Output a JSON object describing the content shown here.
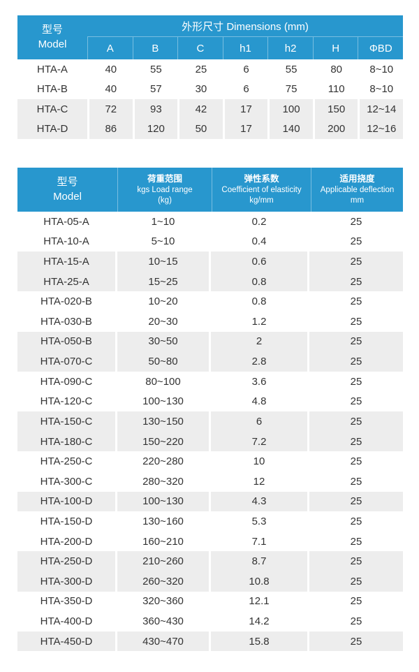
{
  "colors": {
    "header_blue": "#2897ce",
    "stripe_gray": "#ededed",
    "text_dark": "#333333"
  },
  "dimensions_table": {
    "model_header": {
      "zh": "型号",
      "en": "Model"
    },
    "dimensions_title": "外形尺寸 Dimensions (mm)",
    "columns": [
      "A",
      "B",
      "C",
      "h1",
      "h2",
      "H",
      "ΦBD"
    ],
    "rows": [
      {
        "model": "HTA-A",
        "values": [
          "40",
          "55",
          "25",
          "6",
          "55",
          "80",
          "8~10"
        ],
        "shaded": false
      },
      {
        "model": "HTA-B",
        "values": [
          "40",
          "57",
          "30",
          "6",
          "75",
          "110",
          "8~10"
        ],
        "shaded": false
      },
      {
        "model": "HTA-C",
        "values": [
          "72",
          "93",
          "42",
          "17",
          "100",
          "150",
          "12~14"
        ],
        "shaded": true
      },
      {
        "model": "HTA-D",
        "values": [
          "86",
          "120",
          "50",
          "17",
          "140",
          "200",
          "12~16"
        ],
        "shaded": true
      }
    ]
  },
  "spec_table": {
    "headers": [
      {
        "lines": [
          "型号",
          "Model"
        ]
      },
      {
        "lines": [
          "荷重范围",
          "kgs Load range",
          "(kg)"
        ]
      },
      {
        "lines": [
          "弹性系数",
          "Coefficient of elasticity",
          "kg/mm"
        ]
      },
      {
        "lines": [
          "适用挠度",
          "Applicable deflection",
          "mm"
        ]
      }
    ],
    "rows": [
      {
        "model": "HTA-05-A",
        "load_range": "1~10",
        "coefficient": "0.2",
        "deflection": "25",
        "shaded": false
      },
      {
        "model": "HTA-10-A",
        "load_range": "5~10",
        "coefficient": "0.4",
        "deflection": "25",
        "shaded": false
      },
      {
        "model": "HTA-15-A",
        "load_range": "10~15",
        "coefficient": "0.6",
        "deflection": "25",
        "shaded": true
      },
      {
        "model": "HTA-25-A",
        "load_range": "15~25",
        "coefficient": "0.8",
        "deflection": "25",
        "shaded": true
      },
      {
        "model": "HTA-020-B",
        "load_range": "10~20",
        "coefficient": "0.8",
        "deflection": "25",
        "shaded": false
      },
      {
        "model": "HTA-030-B",
        "load_range": "20~30",
        "coefficient": "1.2",
        "deflection": "25",
        "shaded": false
      },
      {
        "model": "HTA-050-B",
        "load_range": "30~50",
        "coefficient": "2",
        "deflection": "25",
        "shaded": true
      },
      {
        "model": "HTA-070-C",
        "load_range": "50~80",
        "coefficient": "2.8",
        "deflection": "25",
        "shaded": true
      },
      {
        "model": "HTA-090-C",
        "load_range": "80~100",
        "coefficient": "3.6",
        "deflection": "25",
        "shaded": false
      },
      {
        "model": "HTA-120-C",
        "load_range": "100~130",
        "coefficient": "4.8",
        "deflection": "25",
        "shaded": false
      },
      {
        "model": "HTA-150-C",
        "load_range": "130~150",
        "coefficient": "6",
        "deflection": "25",
        "shaded": true
      },
      {
        "model": "HTA-180-C",
        "load_range": "150~220",
        "coefficient": "7.2",
        "deflection": "25",
        "shaded": true
      },
      {
        "model": "HTA-250-C",
        "load_range": "220~280",
        "coefficient": "10",
        "deflection": "25",
        "shaded": false
      },
      {
        "model": "HTA-300-C",
        "load_range": "280~320",
        "coefficient": "12",
        "deflection": "25",
        "shaded": false
      },
      {
        "model": "HTA-100-D",
        "load_range": "100~130",
        "coefficient": "4.3",
        "deflection": "25",
        "shaded": true
      },
      {
        "model": "HTA-150-D",
        "load_range": "130~160",
        "coefficient": "5.3",
        "deflection": "25",
        "shaded": false
      },
      {
        "model": "HTA-200-D",
        "load_range": "160~210",
        "coefficient": "7.1",
        "deflection": "25",
        "shaded": false
      },
      {
        "model": "HTA-250-D",
        "load_range": "210~260",
        "coefficient": "8.7",
        "deflection": "25",
        "shaded": true
      },
      {
        "model": "HTA-300-D",
        "load_range": "260~320",
        "coefficient": "10.8",
        "deflection": "25",
        "shaded": true
      },
      {
        "model": "HTA-350-D",
        "load_range": "320~360",
        "coefficient": "12.1",
        "deflection": "25",
        "shaded": false
      },
      {
        "model": "HTA-400-D",
        "load_range": "360~430",
        "coefficient": "14.2",
        "deflection": "25",
        "shaded": false
      },
      {
        "model": "HTA-450-D",
        "load_range": "430~470",
        "coefficient": "15.8",
        "deflection": "25",
        "shaded": true
      }
    ]
  }
}
